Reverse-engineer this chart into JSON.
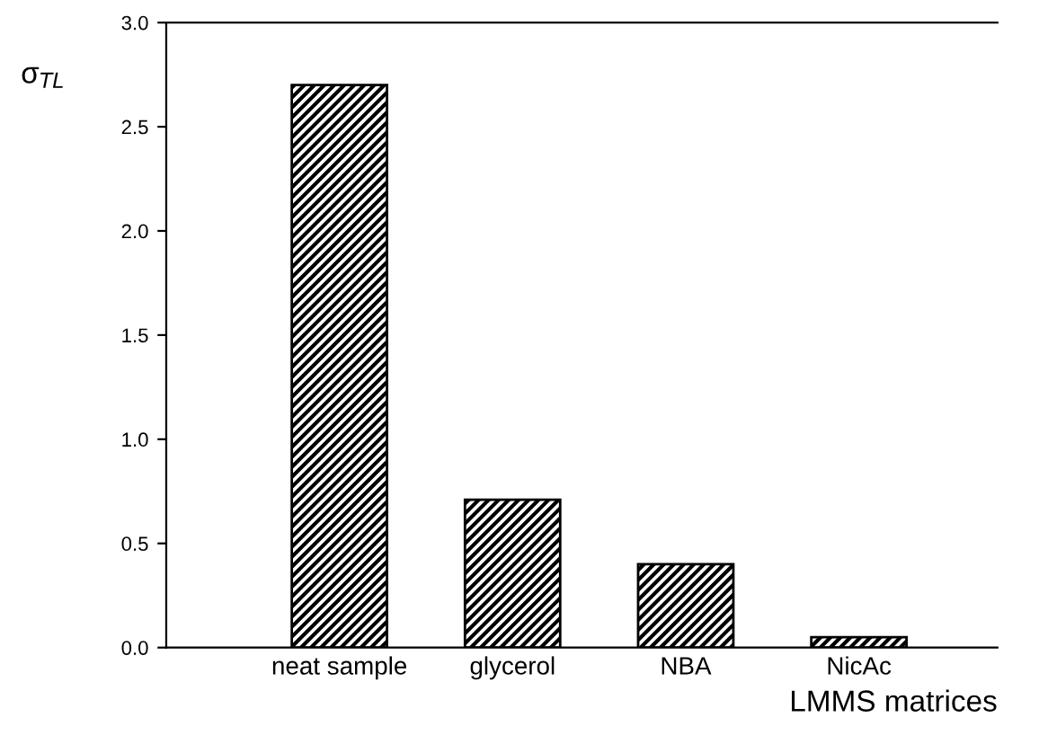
{
  "chart_data": {
    "type": "bar",
    "ylabel": "σ$_{TL}$",
    "xlabel": "LMMS matrices",
    "categories": [
      "neat sample",
      "glycerol",
      "NBA",
      "NicAc"
    ],
    "values": [
      2.7,
      0.71,
      0.4,
      0.05
    ],
    "color": "#000000",
    "ylim": [
      0,
      3.0
    ],
    "yticks": [
      {
        "value": 0,
        "label": "0.0"
      },
      {
        "value": 0.5,
        "label": "0.5"
      },
      {
        "value": 1.0,
        "label": "1.0"
      },
      {
        "value": 1.5,
        "label": "1.5"
      },
      {
        "value": 2.0,
        "label": "2.0"
      },
      {
        "value": 2.5,
        "label": "2.5"
      },
      {
        "value": 3.0,
        "label": "3.0"
      }
    ],
    "grid": false
  }
}
